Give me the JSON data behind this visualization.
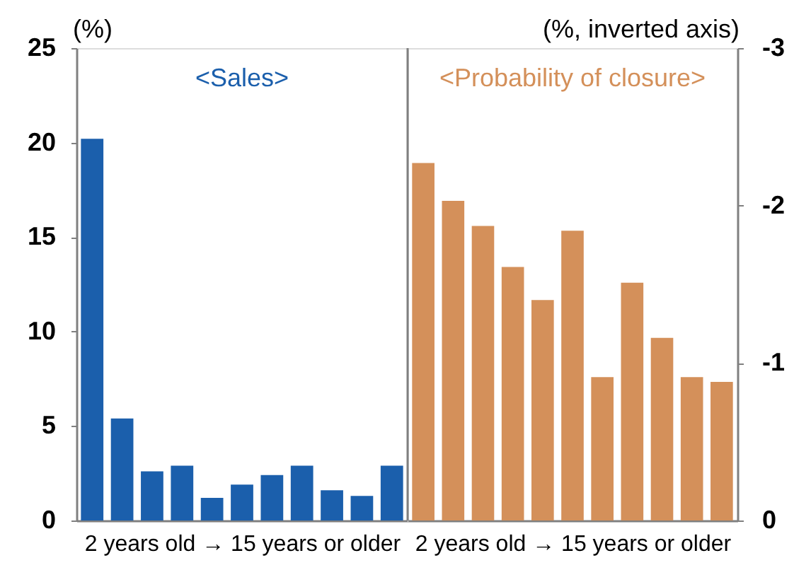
{
  "chart_data": [
    {
      "type": "bar",
      "title": "<Sales>",
      "xlabel": "2 years old → 15 years or older",
      "ylabel": "(%)",
      "categories": [
        null,
        null,
        null,
        null,
        null,
        null,
        null,
        null,
        null,
        null,
        null
      ],
      "series": [
        {
          "color": "#1b5fac",
          "values": [
            20.2,
            5.4,
            2.6,
            2.9,
            1.2,
            1.9,
            2.4,
            2.9,
            1.6,
            1.3,
            2.9
          ]
        }
      ],
      "ylim": [
        0,
        25
      ],
      "yticks": [
        0,
        5,
        10,
        15,
        20,
        25
      ]
    },
    {
      "type": "bar",
      "title": "<Probability of closure>",
      "xlabel": "2 years old → 15 years or older",
      "ylabel": "(%, inverted axis)",
      "categories": [
        null,
        null,
        null,
        null,
        null,
        null,
        null,
        null,
        null,
        null,
        null
      ],
      "series": [
        {
          "color": "#d4905a",
          "values": [
            -2.27,
            -2.03,
            -1.87,
            -1.61,
            -1.4,
            -1.84,
            -0.91,
            -1.51,
            -1.16,
            -0.91,
            -0.88
          ]
        }
      ],
      "ylim": [
        0,
        -3
      ],
      "yticks": [
        0,
        -1,
        -2,
        -3
      ]
    }
  ]
}
